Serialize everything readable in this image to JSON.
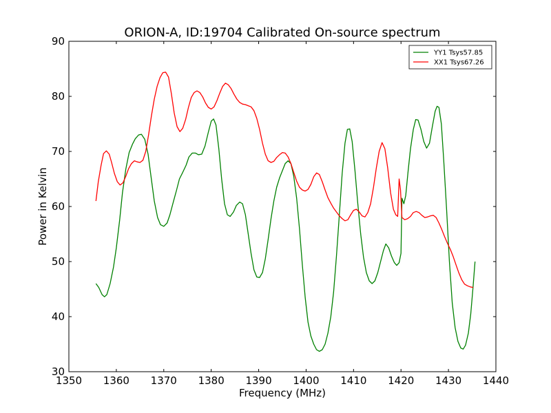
{
  "chart_data": {
    "type": "line",
    "title": "ORION-A, ID:19704 Calibrated On-source spectrum",
    "xlabel": "Frequency (MHz)",
    "ylabel": "Power in Kelvin",
    "xlim": [
      1350,
      1440
    ],
    "ylim": [
      30,
      90
    ],
    "xticks": [
      1350,
      1360,
      1370,
      1380,
      1390,
      1400,
      1410,
      1420,
      1430,
      1440
    ],
    "yticks": [
      30,
      40,
      50,
      60,
      70,
      80,
      90
    ],
    "grid": false,
    "legend_position": "top-right",
    "series": [
      {
        "name": "YY1 Tsys57.85",
        "color": "#008000",
        "points": [
          [
            1355.7,
            46.0
          ],
          [
            1356.3,
            45.3
          ],
          [
            1357.0,
            44.0
          ],
          [
            1357.5,
            43.6
          ],
          [
            1358.0,
            44.0
          ],
          [
            1358.7,
            46.0
          ],
          [
            1359.4,
            49.0
          ],
          [
            1360.0,
            52.5
          ],
          [
            1360.7,
            57.5
          ],
          [
            1361.3,
            62.5
          ],
          [
            1362.0,
            66.8
          ],
          [
            1362.7,
            69.8
          ],
          [
            1363.4,
            71.3
          ],
          [
            1364.0,
            72.3
          ],
          [
            1364.7,
            73.0
          ],
          [
            1365.3,
            73.1
          ],
          [
            1366.0,
            72.2
          ],
          [
            1366.7,
            69.5
          ],
          [
            1367.3,
            65.5
          ],
          [
            1368.0,
            61.0
          ],
          [
            1368.7,
            58.0
          ],
          [
            1369.3,
            56.7
          ],
          [
            1370.0,
            56.4
          ],
          [
            1370.7,
            57.0
          ],
          [
            1371.3,
            58.5
          ],
          [
            1372.0,
            60.8
          ],
          [
            1372.7,
            63.0
          ],
          [
            1373.3,
            65.0
          ],
          [
            1374.0,
            66.2
          ],
          [
            1374.7,
            67.5
          ],
          [
            1375.3,
            69.0
          ],
          [
            1376.0,
            69.7
          ],
          [
            1376.7,
            69.7
          ],
          [
            1377.3,
            69.4
          ],
          [
            1378.0,
            69.5
          ],
          [
            1378.7,
            71.0
          ],
          [
            1379.4,
            73.5
          ],
          [
            1380.0,
            75.5
          ],
          [
            1380.5,
            75.9
          ],
          [
            1381.0,
            74.8
          ],
          [
            1381.6,
            70.5
          ],
          [
            1382.2,
            65.0
          ],
          [
            1382.8,
            60.5
          ],
          [
            1383.4,
            58.5
          ],
          [
            1384.0,
            58.2
          ],
          [
            1384.7,
            59.0
          ],
          [
            1385.3,
            60.2
          ],
          [
            1386.0,
            60.8
          ],
          [
            1386.6,
            60.5
          ],
          [
            1387.2,
            58.5
          ],
          [
            1387.8,
            55.0
          ],
          [
            1388.4,
            51.5
          ],
          [
            1389.0,
            48.5
          ],
          [
            1389.6,
            47.2
          ],
          [
            1390.2,
            47.1
          ],
          [
            1390.8,
            48.0
          ],
          [
            1391.4,
            50.5
          ],
          [
            1392.0,
            54.0
          ],
          [
            1392.6,
            57.8
          ],
          [
            1393.2,
            61.0
          ],
          [
            1393.8,
            63.5
          ],
          [
            1394.4,
            65.2
          ],
          [
            1395.0,
            66.5
          ],
          [
            1395.6,
            67.8
          ],
          [
            1396.2,
            68.3
          ],
          [
            1396.8,
            67.8
          ],
          [
            1397.4,
            65.5
          ],
          [
            1398.0,
            61.5
          ],
          [
            1398.6,
            56.0
          ],
          [
            1399.2,
            49.5
          ],
          [
            1399.8,
            43.5
          ],
          [
            1400.4,
            39.0
          ],
          [
            1401.0,
            36.5
          ],
          [
            1401.6,
            35.0
          ],
          [
            1402.2,
            34.0
          ],
          [
            1402.8,
            33.7
          ],
          [
            1403.4,
            34.0
          ],
          [
            1404.0,
            35.0
          ],
          [
            1404.6,
            37.0
          ],
          [
            1405.2,
            40.0
          ],
          [
            1405.8,
            44.5
          ],
          [
            1406.4,
            51.0
          ],
          [
            1407.0,
            58.5
          ],
          [
            1407.6,
            66.0
          ],
          [
            1408.2,
            71.5
          ],
          [
            1408.7,
            74.0
          ],
          [
            1409.2,
            74.1
          ],
          [
            1409.7,
            71.8
          ],
          [
            1410.3,
            66.5
          ],
          [
            1410.9,
            60.5
          ],
          [
            1411.5,
            55.0
          ],
          [
            1412.1,
            50.8
          ],
          [
            1412.7,
            48.0
          ],
          [
            1413.3,
            46.5
          ],
          [
            1413.9,
            46.0
          ],
          [
            1414.5,
            46.5
          ],
          [
            1415.1,
            48.0
          ],
          [
            1415.7,
            50.0
          ],
          [
            1416.3,
            52.0
          ],
          [
            1416.8,
            53.2
          ],
          [
            1417.4,
            52.5
          ],
          [
            1418.0,
            51.0
          ],
          [
            1418.6,
            49.8
          ],
          [
            1419.1,
            49.3
          ],
          [
            1419.6,
            49.8
          ],
          [
            1420.0,
            51.5
          ],
          [
            1420.2,
            61.5
          ],
          [
            1420.6,
            60.5
          ],
          [
            1421.0,
            62.0
          ],
          [
            1421.5,
            66.5
          ],
          [
            1422.0,
            70.5
          ],
          [
            1422.6,
            74.0
          ],
          [
            1423.1,
            75.8
          ],
          [
            1423.6,
            75.7
          ],
          [
            1424.2,
            74.0
          ],
          [
            1424.8,
            71.8
          ],
          [
            1425.4,
            70.6
          ],
          [
            1426.0,
            71.5
          ],
          [
            1426.6,
            74.5
          ],
          [
            1427.2,
            77.3
          ],
          [
            1427.6,
            78.2
          ],
          [
            1428.0,
            78.0
          ],
          [
            1428.5,
            75.0
          ],
          [
            1429.0,
            68.5
          ],
          [
            1429.6,
            59.5
          ],
          [
            1430.2,
            50.0
          ],
          [
            1430.8,
            42.5
          ],
          [
            1431.4,
            38.0
          ],
          [
            1432.0,
            35.5
          ],
          [
            1432.6,
            34.3
          ],
          [
            1433.1,
            34.1
          ],
          [
            1433.6,
            34.8
          ],
          [
            1434.2,
            37.0
          ],
          [
            1434.7,
            40.5
          ],
          [
            1435.2,
            45.5
          ],
          [
            1435.6,
            50.0
          ]
        ]
      },
      {
        "name": "XX1 Tsys67.26",
        "color": "#ff0000",
        "points": [
          [
            1355.7,
            61.0
          ],
          [
            1356.2,
            64.5
          ],
          [
            1356.8,
            67.5
          ],
          [
            1357.3,
            69.6
          ],
          [
            1357.9,
            70.1
          ],
          [
            1358.5,
            69.5
          ],
          [
            1359.0,
            68.0
          ],
          [
            1359.6,
            66.0
          ],
          [
            1360.2,
            64.5
          ],
          [
            1360.8,
            63.9
          ],
          [
            1361.4,
            64.3
          ],
          [
            1362.0,
            65.5
          ],
          [
            1362.6,
            66.9
          ],
          [
            1363.2,
            67.8
          ],
          [
            1363.8,
            68.3
          ],
          [
            1364.4,
            68.1
          ],
          [
            1365.0,
            68.0
          ],
          [
            1365.6,
            68.4
          ],
          [
            1366.2,
            70.0
          ],
          [
            1366.8,
            73.0
          ],
          [
            1367.4,
            76.5
          ],
          [
            1368.0,
            79.5
          ],
          [
            1368.6,
            81.8
          ],
          [
            1369.2,
            83.4
          ],
          [
            1369.8,
            84.3
          ],
          [
            1370.4,
            84.4
          ],
          [
            1371.0,
            83.5
          ],
          [
            1371.6,
            80.5
          ],
          [
            1372.2,
            77.0
          ],
          [
            1372.8,
            74.5
          ],
          [
            1373.4,
            73.6
          ],
          [
            1374.0,
            74.2
          ],
          [
            1374.6,
            75.8
          ],
          [
            1375.2,
            78.0
          ],
          [
            1375.8,
            79.8
          ],
          [
            1376.4,
            80.7
          ],
          [
            1377.0,
            81.0
          ],
          [
            1377.6,
            80.7
          ],
          [
            1378.2,
            79.9
          ],
          [
            1378.8,
            78.8
          ],
          [
            1379.4,
            78.0
          ],
          [
            1380.0,
            77.7
          ],
          [
            1380.6,
            78.1
          ],
          [
            1381.2,
            79.2
          ],
          [
            1381.8,
            80.6
          ],
          [
            1382.4,
            81.8
          ],
          [
            1383.0,
            82.4
          ],
          [
            1383.6,
            82.1
          ],
          [
            1384.2,
            81.4
          ],
          [
            1384.8,
            80.4
          ],
          [
            1385.4,
            79.5
          ],
          [
            1386.0,
            78.9
          ],
          [
            1386.6,
            78.6
          ],
          [
            1387.2,
            78.5
          ],
          [
            1387.8,
            78.3
          ],
          [
            1388.4,
            78.1
          ],
          [
            1389.0,
            77.4
          ],
          [
            1389.6,
            76.0
          ],
          [
            1390.2,
            74.0
          ],
          [
            1390.8,
            71.5
          ],
          [
            1391.4,
            69.5
          ],
          [
            1392.0,
            68.3
          ],
          [
            1392.6,
            68.0
          ],
          [
            1393.2,
            68.2
          ],
          [
            1393.8,
            68.9
          ],
          [
            1394.4,
            69.4
          ],
          [
            1395.0,
            69.8
          ],
          [
            1395.6,
            69.7
          ],
          [
            1396.2,
            69.0
          ],
          [
            1396.8,
            67.8
          ],
          [
            1397.4,
            66.2
          ],
          [
            1398.0,
            64.6
          ],
          [
            1398.6,
            63.5
          ],
          [
            1399.2,
            63.0
          ],
          [
            1399.8,
            62.8
          ],
          [
            1400.4,
            63.1
          ],
          [
            1401.0,
            64.0
          ],
          [
            1401.6,
            65.4
          ],
          [
            1402.2,
            66.1
          ],
          [
            1402.8,
            65.8
          ],
          [
            1403.4,
            64.5
          ],
          [
            1404.0,
            63.0
          ],
          [
            1404.6,
            61.6
          ],
          [
            1405.2,
            60.6
          ],
          [
            1405.8,
            59.7
          ],
          [
            1406.4,
            59.0
          ],
          [
            1407.0,
            58.3
          ],
          [
            1407.6,
            57.8
          ],
          [
            1408.2,
            57.4
          ],
          [
            1408.8,
            57.6
          ],
          [
            1409.4,
            58.5
          ],
          [
            1410.0,
            59.3
          ],
          [
            1410.6,
            59.5
          ],
          [
            1411.2,
            59.0
          ],
          [
            1411.8,
            58.3
          ],
          [
            1412.4,
            58.1
          ],
          [
            1413.0,
            58.9
          ],
          [
            1413.6,
            60.5
          ],
          [
            1414.2,
            63.5
          ],
          [
            1414.8,
            67.0
          ],
          [
            1415.4,
            70.0
          ],
          [
            1416.0,
            71.6
          ],
          [
            1416.6,
            70.5
          ],
          [
            1417.2,
            67.0
          ],
          [
            1417.8,
            62.5
          ],
          [
            1418.4,
            59.5
          ],
          [
            1418.9,
            58.5
          ],
          [
            1419.3,
            58.2
          ],
          [
            1419.6,
            65.0
          ],
          [
            1419.9,
            63.0
          ],
          [
            1420.2,
            58.0
          ],
          [
            1420.8,
            57.6
          ],
          [
            1421.4,
            57.8
          ],
          [
            1422.0,
            58.2
          ],
          [
            1422.6,
            58.9
          ],
          [
            1423.2,
            59.1
          ],
          [
            1423.8,
            58.9
          ],
          [
            1424.4,
            58.4
          ],
          [
            1425.0,
            58.0
          ],
          [
            1425.6,
            58.1
          ],
          [
            1426.2,
            58.3
          ],
          [
            1426.8,
            58.4
          ],
          [
            1427.4,
            58.0
          ],
          [
            1428.0,
            57.0
          ],
          [
            1428.6,
            55.8
          ],
          [
            1429.2,
            54.5
          ],
          [
            1429.8,
            53.3
          ],
          [
            1430.4,
            52.2
          ],
          [
            1431.0,
            50.9
          ],
          [
            1431.6,
            49.4
          ],
          [
            1432.2,
            47.9
          ],
          [
            1432.8,
            46.7
          ],
          [
            1433.4,
            45.9
          ],
          [
            1434.0,
            45.6
          ],
          [
            1434.6,
            45.4
          ],
          [
            1435.2,
            45.3
          ]
        ]
      }
    ]
  }
}
